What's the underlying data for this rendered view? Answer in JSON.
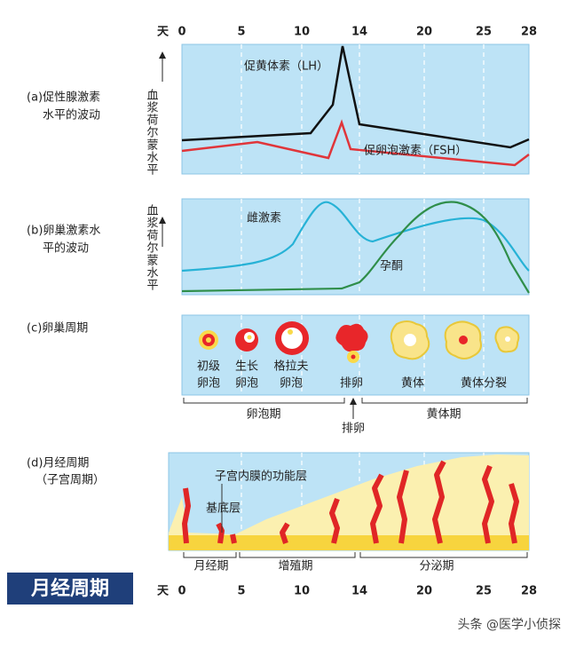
{
  "day_axis": {
    "unit": "天",
    "ticks": [
      0,
      5,
      10,
      14,
      20,
      25,
      28
    ]
  },
  "panels": {
    "a": {
      "label": [
        "(a)促性腺激素",
        "水平的波动"
      ],
      "y_label": "血浆荷尔蒙水平",
      "curves": [
        "促黄体素（LH）",
        "促卵泡激素（FSH）"
      ]
    },
    "b": {
      "label": [
        "(b)卵巢激素水",
        "平的波动"
      ],
      "y_label": "血浆荷尔蒙水平",
      "curves": [
        "雌激素",
        "孕酮"
      ]
    },
    "c": {
      "label": "(c)卵巢周期",
      "stages": [
        [
          "初级",
          "卵泡"
        ],
        [
          "生长",
          "卵泡"
        ],
        [
          "格拉夫",
          "卵泡"
        ],
        "排卵",
        "黄体",
        "黄体分裂"
      ],
      "phases": [
        "卵泡期",
        "黄体期"
      ],
      "event": "排卵"
    },
    "d": {
      "label": [
        "(d)月经周期",
        "（子宫周期）"
      ],
      "layers": [
        "子宫内膜的功能层",
        "基底层"
      ],
      "phases": [
        "月经期",
        "增殖期",
        "分泌期"
      ]
    }
  },
  "banner": "月经周期",
  "watermark": "头条 @医学小侦探"
}
